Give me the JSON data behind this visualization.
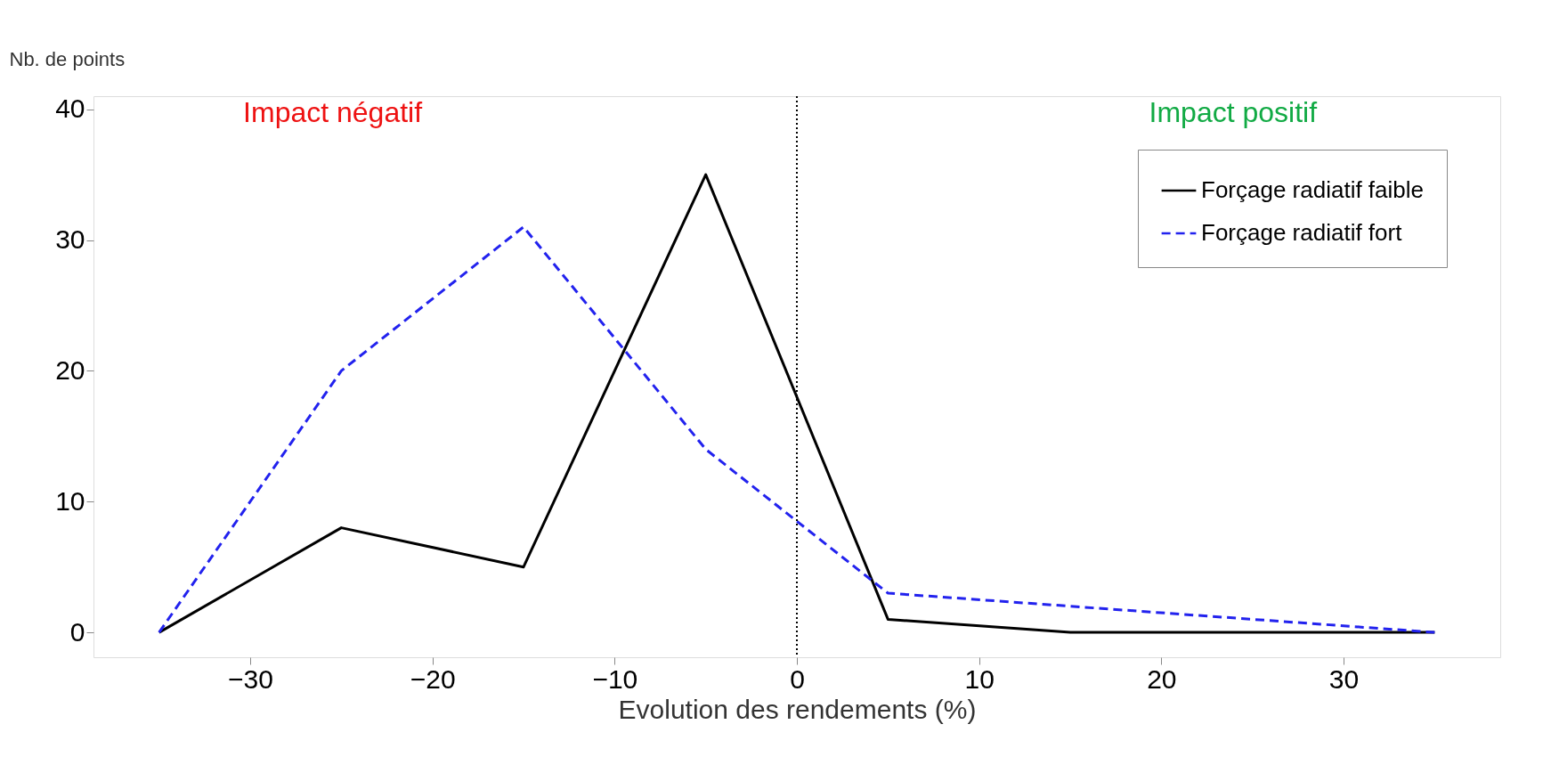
{
  "chart_data": {
    "type": "line",
    "xlabel": "Evolution des rendements (%)",
    "ylabel": "Nb. de points",
    "x": [
      -35,
      -25,
      -15,
      -5,
      5,
      15,
      25,
      35
    ],
    "series": [
      {
        "name": "Forçage radiatif faible",
        "color": "#000000",
        "line_style": "solid",
        "values": [
          0,
          8,
          5,
          35,
          1,
          0,
          0,
          0
        ]
      },
      {
        "name": "Forçage radiatif fort",
        "color": "#2222ee",
        "line_style": "dashed",
        "values": [
          0,
          20,
          31,
          14,
          3,
          2,
          1,
          0
        ]
      }
    ],
    "xlim": [
      -38.6,
      38.6
    ],
    "xticks": [
      -30,
      -20,
      -10,
      0,
      10,
      20,
      30
    ],
    "ylim": [
      -1.9,
      41
    ],
    "yticks": [
      0,
      10,
      20,
      30,
      40
    ],
    "ref_lines": [
      {
        "axis": "x",
        "value": 0,
        "label": null,
        "line_style": "dotted",
        "color": "#000000"
      }
    ],
    "annotations": [
      "Impact négatif",
      "Impact positif"
    ],
    "grid": false,
    "legend": "top right",
    "marker": "none"
  }
}
